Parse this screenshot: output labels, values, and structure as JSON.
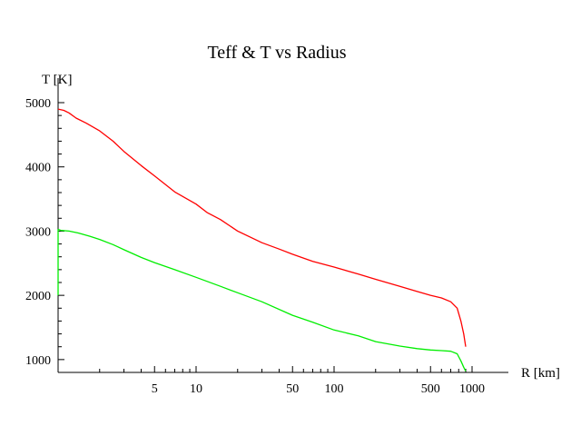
{
  "chart_data": {
    "type": "line",
    "title": "Teff & T vs Radius",
    "xlabel": "R [km]",
    "ylabel": "T [K]",
    "x_scale": "log",
    "xlim": [
      1,
      1000
    ],
    "ylim": [
      800,
      5000
    ],
    "x_ticks": [
      {
        "value": 5,
        "label": "5"
      },
      {
        "value": 10,
        "label": "10"
      },
      {
        "value": 50,
        "label": "50"
      },
      {
        "value": 100,
        "label": "100"
      },
      {
        "value": 500,
        "label": "500"
      },
      {
        "value": 1000,
        "label": "1000"
      }
    ],
    "y_ticks": [
      {
        "value": 1000,
        "label": "1000"
      },
      {
        "value": 2000,
        "label": "2000"
      },
      {
        "value": 3000,
        "label": "3000"
      },
      {
        "value": 4000,
        "label": "4000"
      },
      {
        "value": 5000,
        "label": "5000"
      }
    ],
    "grid": false,
    "legend": "none",
    "series": [
      {
        "color": "#ff0000",
        "x": [
          1,
          1.1,
          1.2,
          1.35,
          1.6,
          2,
          2.5,
          3,
          4,
          5,
          7,
          10,
          12,
          15,
          20,
          30,
          40,
          50,
          70,
          100,
          150,
          200,
          300,
          400,
          500,
          600,
          700,
          780,
          830,
          870,
          900
        ],
        "y": [
          4900,
          4880,
          4840,
          4760,
          4680,
          4560,
          4400,
          4240,
          4020,
          3860,
          3610,
          3420,
          3290,
          3180,
          3000,
          2820,
          2720,
          2640,
          2530,
          2440,
          2330,
          2250,
          2140,
          2060,
          2000,
          1960,
          1900,
          1800,
          1600,
          1400,
          1200
        ]
      },
      {
        "color": "#00ee00",
        "x": [
          1,
          1.05,
          1.2,
          1.4,
          1.7,
          2,
          2.5,
          3,
          4,
          5,
          7,
          10,
          15,
          20,
          30,
          50,
          70,
          100,
          150,
          200,
          300,
          400,
          500,
          600,
          700,
          780,
          830,
          870,
          900
        ],
        "y": [
          3030,
          3010,
          3000,
          2970,
          2920,
          2870,
          2790,
          2710,
          2590,
          2510,
          2400,
          2280,
          2140,
          2040,
          1900,
          1690,
          1580,
          1460,
          1370,
          1280,
          1210,
          1170,
          1150,
          1140,
          1130,
          1090,
          980,
          880,
          820
        ]
      },
      {
        "color": "#00ee00",
        "x": [
          1,
          1,
          1,
          1
        ],
        "y": [
          2000,
          2600,
          2900,
          3030
        ]
      }
    ]
  }
}
